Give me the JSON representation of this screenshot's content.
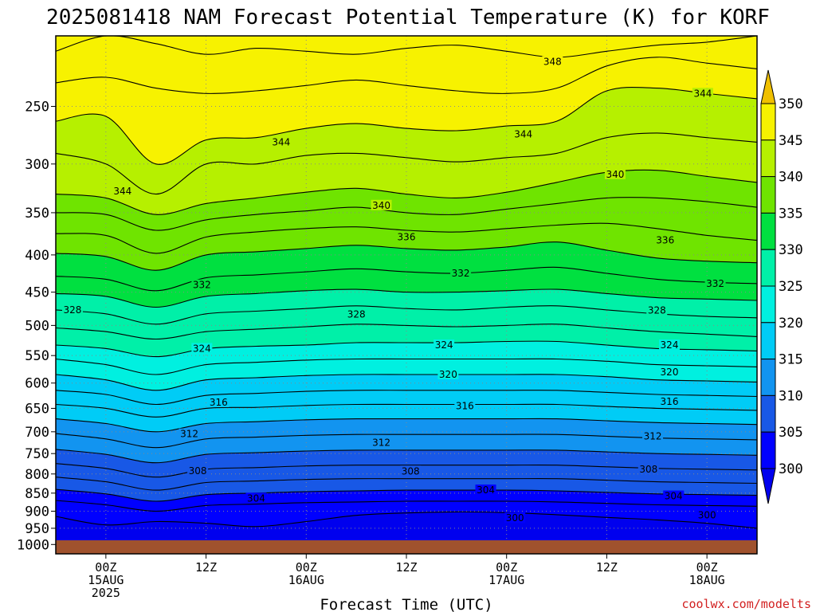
{
  "title": "2025081418 NAM Forecast Potential Temperature (K) for KORF",
  "credit": "coolwx.com/modelts",
  "colors": {
    "ground": "#a0522d",
    "grid": "#888888",
    "contour": "#000000",
    "contour_label_bg": "#ffffff"
  },
  "chart_data": {
    "type": "contour",
    "title": "2025081418 NAM Forecast Potential Temperature (K) for KORF",
    "xlabel": "Forecast Time (UTC)",
    "ylabel": "",
    "x_ticks": [
      {
        "hour": 6,
        "lines": [
          "00Z",
          "15AUG",
          "2025"
        ]
      },
      {
        "hour": 18,
        "lines": [
          "12Z"
        ]
      },
      {
        "hour": 30,
        "lines": [
          "00Z",
          "16AUG"
        ]
      },
      {
        "hour": 42,
        "lines": [
          "12Z"
        ]
      },
      {
        "hour": 54,
        "lines": [
          "00Z",
          "17AUG"
        ]
      },
      {
        "hour": 66,
        "lines": [
          "12Z"
        ]
      },
      {
        "hour": 78,
        "lines": [
          "00Z",
          "18AUG"
        ]
      }
    ],
    "xlim_hours": [
      0,
      84
    ],
    "y_ticks": [
      "250",
      "300",
      "350",
      "400",
      "450",
      "500",
      "550",
      "600",
      "650",
      "700",
      "750",
      "800",
      "850",
      "900",
      "950",
      "1000"
    ],
    "y_axis": "pressure (hPa), log scale, inverted",
    "ylim_hpa": [
      1030,
      200
    ],
    "grid": true,
    "colorbar": {
      "ticks": [
        "350",
        "345",
        "340",
        "335",
        "330",
        "325",
        "320",
        "315",
        "310",
        "305",
        "300"
      ],
      "levels": [
        {
          "range": [
            345,
            350
          ],
          "color": "#f7f200"
        },
        {
          "range": [
            340,
            345
          ],
          "color": "#b6f000"
        },
        {
          "range": [
            335,
            340
          ],
          "color": "#6fe400"
        },
        {
          "range": [
            330,
            335
          ],
          "color": "#00e040"
        },
        {
          "range": [
            325,
            330
          ],
          "color": "#00f0a8"
        },
        {
          "range": [
            320,
            325
          ],
          "color": "#00f0e0"
        },
        {
          "range": [
            315,
            320
          ],
          "color": "#00ccf6"
        },
        {
          "range": [
            310,
            315
          ],
          "color": "#1294f0"
        },
        {
          "range": [
            305,
            310
          ],
          "color": "#1858e6"
        },
        {
          "range": [
            300,
            305
          ],
          "color": "#0000ff"
        }
      ],
      "over_color": "#f0c000",
      "under_color": "#0000ee"
    },
    "contour_interval_K": 2,
    "series": [
      {
        "level": 348,
        "pressures": [
          210,
          200,
          205,
          212,
          208,
          210,
          212,
          208,
          206,
          210,
          214,
          210,
          206,
          204,
          200
        ]
      },
      {
        "level": 346,
        "pressures": [
          232,
          228,
          236,
          240,
          238,
          234,
          230,
          234,
          238,
          240,
          236,
          220,
          214,
          218,
          222
        ]
      },
      {
        "level": 344,
        "pressures": [
          262,
          258,
          300,
          278,
          276,
          268,
          264,
          268,
          270,
          266,
          262,
          238,
          236,
          240,
          244
        ]
      },
      {
        "level": 342,
        "pressures": [
          290,
          300,
          330,
          300,
          300,
          292,
          290,
          294,
          298,
          294,
          290,
          276,
          272,
          276,
          280
        ]
      },
      {
        "level": 340,
        "pressures": [
          330,
          334,
          352,
          340,
          334,
          328,
          324,
          330,
          334,
          328,
          318,
          308,
          306,
          312,
          318
        ]
      },
      {
        "level": 338,
        "pressures": [
          350,
          352,
          370,
          358,
          352,
          348,
          344,
          350,
          352,
          346,
          340,
          334,
          334,
          338,
          344
        ]
      },
      {
        "level": 336,
        "pressures": [
          374,
          376,
          398,
          378,
          372,
          368,
          366,
          370,
          372,
          368,
          364,
          362,
          368,
          376,
          382
        ]
      },
      {
        "level": 334,
        "pressures": [
          398,
          402,
          420,
          400,
          396,
          392,
          388,
          392,
          394,
          390,
          384,
          394,
          404,
          408,
          410
        ]
      },
      {
        "level": 332,
        "pressures": [
          428,
          432,
          448,
          430,
          426,
          422,
          418,
          422,
          424,
          420,
          416,
          424,
          432,
          436,
          438
        ]
      },
      {
        "level": 330,
        "pressures": [
          452,
          456,
          472,
          456,
          452,
          448,
          446,
          450,
          450,
          448,
          446,
          452,
          458,
          460,
          462
        ]
      },
      {
        "level": 328,
        "pressures": [
          476,
          482,
          498,
          482,
          478,
          474,
          470,
          474,
          476,
          472,
          470,
          476,
          482,
          486,
          488
        ]
      },
      {
        "level": 326,
        "pressures": [
          504,
          510,
          522,
          510,
          506,
          502,
          498,
          500,
          502,
          500,
          498,
          504,
          510,
          514,
          518
        ]
      },
      {
        "level": 324,
        "pressures": [
          532,
          538,
          552,
          538,
          534,
          532,
          528,
          528,
          528,
          526,
          526,
          532,
          538,
          540,
          542
        ]
      },
      {
        "level": 322,
        "pressures": [
          556,
          566,
          584,
          566,
          562,
          558,
          556,
          556,
          556,
          556,
          556,
          560,
          566,
          568,
          570
        ]
      },
      {
        "level": 320,
        "pressures": [
          584,
          594,
          614,
          594,
          590,
          586,
          584,
          584,
          584,
          584,
          584,
          588,
          594,
          596,
          598
        ]
      },
      {
        "level": 318,
        "pressures": [
          614,
          622,
          642,
          624,
          620,
          616,
          614,
          614,
          614,
          614,
          614,
          618,
          622,
          624,
          626
        ]
      },
      {
        "level": 316,
        "pressures": [
          642,
          650,
          668,
          650,
          648,
          644,
          642,
          642,
          642,
          642,
          642,
          646,
          650,
          652,
          654
        ]
      },
      {
        "level": 314,
        "pressures": [
          672,
          682,
          700,
          682,
          678,
          674,
          672,
          672,
          672,
          672,
          672,
          676,
          680,
          682,
          684
        ]
      },
      {
        "level": 312,
        "pressures": [
          704,
          716,
          736,
          716,
          712,
          708,
          706,
          706,
          706,
          706,
          706,
          710,
          714,
          716,
          718
        ]
      },
      {
        "level": 310,
        "pressures": [
          740,
          752,
          772,
          752,
          748,
          744,
          742,
          742,
          742,
          742,
          742,
          746,
          750,
          752,
          754
        ]
      },
      {
        "level": 308,
        "pressures": [
          774,
          786,
          808,
          788,
          784,
          780,
          778,
          778,
          778,
          778,
          778,
          782,
          786,
          788,
          790
        ]
      },
      {
        "level": 306,
        "pressures": [
          808,
          820,
          842,
          822,
          818,
          814,
          812,
          812,
          812,
          812,
          812,
          816,
          820,
          822,
          824
        ]
      },
      {
        "level": 304,
        "pressures": [
          840,
          852,
          872,
          854,
          850,
          846,
          844,
          842,
          842,
          842,
          844,
          848,
          852,
          854,
          856
        ]
      },
      {
        "level": 302,
        "pressures": [
          870,
          882,
          900,
          884,
          880,
          876,
          874,
          872,
          872,
          872,
          874,
          878,
          882,
          884,
          886
        ]
      },
      {
        "level": 300,
        "pressures": [
          915,
          940,
          930,
          935,
          945,
          930,
          912,
          905,
          902,
          904,
          910,
          918,
          925,
          935,
          950
        ]
      }
    ],
    "labels": [
      {
        "text": "348",
        "x_hours": 59.5,
        "p": 217
      },
      {
        "text": "344",
        "x_hours": 77.5,
        "p": 240
      },
      {
        "text": "344",
        "x_hours": 27.0,
        "p": 280
      },
      {
        "text": "344",
        "x_hours": 56.0,
        "p": 273
      },
      {
        "text": "344",
        "x_hours": 8.0,
        "p": 327
      },
      {
        "text": "340",
        "x_hours": 67.0,
        "p": 310
      },
      {
        "text": "340",
        "x_hours": 39.0,
        "p": 342
      },
      {
        "text": "336",
        "x_hours": 42.0,
        "p": 378
      },
      {
        "text": "336",
        "x_hours": 73.0,
        "p": 382
      },
      {
        "text": "332",
        "x_hours": 48.5,
        "p": 424
      },
      {
        "text": "332",
        "x_hours": 17.5,
        "p": 440
      },
      {
        "text": "332",
        "x_hours": 79.0,
        "p": 438
      },
      {
        "text": "328",
        "x_hours": 2.0,
        "p": 476
      },
      {
        "text": "328",
        "x_hours": 36.0,
        "p": 483
      },
      {
        "text": "328",
        "x_hours": 72.0,
        "p": 477
      },
      {
        "text": "324",
        "x_hours": 17.5,
        "p": 538
      },
      {
        "text": "324",
        "x_hours": 46.5,
        "p": 532
      },
      {
        "text": "324",
        "x_hours": 73.5,
        "p": 532
      },
      {
        "text": "320",
        "x_hours": 47.0,
        "p": 584
      },
      {
        "text": "320",
        "x_hours": 73.5,
        "p": 580
      },
      {
        "text": "316",
        "x_hours": 19.5,
        "p": 638
      },
      {
        "text": "316",
        "x_hours": 49.0,
        "p": 645
      },
      {
        "text": "316",
        "x_hours": 73.5,
        "p": 636
      },
      {
        "text": "312",
        "x_hours": 16.0,
        "p": 705
      },
      {
        "text": "312",
        "x_hours": 39.0,
        "p": 725
      },
      {
        "text": "312",
        "x_hours": 71.5,
        "p": 710
      },
      {
        "text": "308",
        "x_hours": 17.0,
        "p": 792
      },
      {
        "text": "308",
        "x_hours": 42.5,
        "p": 793
      },
      {
        "text": "308",
        "x_hours": 71.0,
        "p": 788
      },
      {
        "text": "304",
        "x_hours": 24.0,
        "p": 864
      },
      {
        "text": "304",
        "x_hours": 51.5,
        "p": 842
      },
      {
        "text": "304",
        "x_hours": 74.0,
        "p": 858
      },
      {
        "text": "300",
        "x_hours": 55.0,
        "p": 920
      },
      {
        "text": "300",
        "x_hours": 78.0,
        "p": 912
      }
    ]
  }
}
